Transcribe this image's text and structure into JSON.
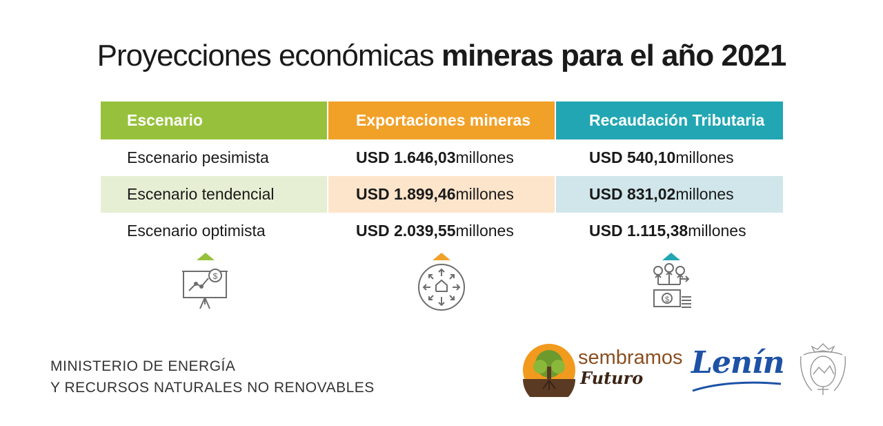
{
  "title": {
    "light": "Proyecciones económicas ",
    "bold": "mineras para el año 2021"
  },
  "table": {
    "headers": [
      "Escenario",
      "Exportaciones mineras",
      "Recaudación Tributaria"
    ],
    "rows": [
      {
        "scenario": "Escenario pesimista",
        "exports": {
          "amount": "USD 1.646,03",
          "unit": " millones"
        },
        "tax": {
          "amount": "USD 540,10",
          "unit": " millones"
        }
      },
      {
        "scenario": "Escenario tendencial",
        "exports": {
          "amount": "USD 1.899,46",
          "unit": " millones"
        },
        "tax": {
          "amount": "USD 831,02",
          "unit": " millones"
        }
      },
      {
        "scenario": "Escenario optimista",
        "exports": {
          "amount": "USD 2.039,55",
          "unit": " millones"
        },
        "tax": {
          "amount": "USD 1.115,38",
          "unit": " millones"
        }
      }
    ]
  },
  "colors": {
    "green": "#97c13c",
    "orange": "#f1a128",
    "teal": "#22a6b3",
    "green_light": "#e6efd3",
    "orange_light": "#fde5cb",
    "teal_light": "#d0e6ea",
    "icon_gray": "#6d6d6d"
  },
  "icons": [
    "presentation-chart-dollar-icon",
    "house-arrows-circle-icon",
    "money-distribution-icon"
  ],
  "footer": {
    "ministry_line1": "MINISTERIO DE ENERGÍA",
    "ministry_line2": "Y RECURSOS NATURALES NO RENOVABLES",
    "logo_sembramos": "sembramos",
    "logo_futuro": "Futuro",
    "logo_lenin": "Lenín"
  }
}
